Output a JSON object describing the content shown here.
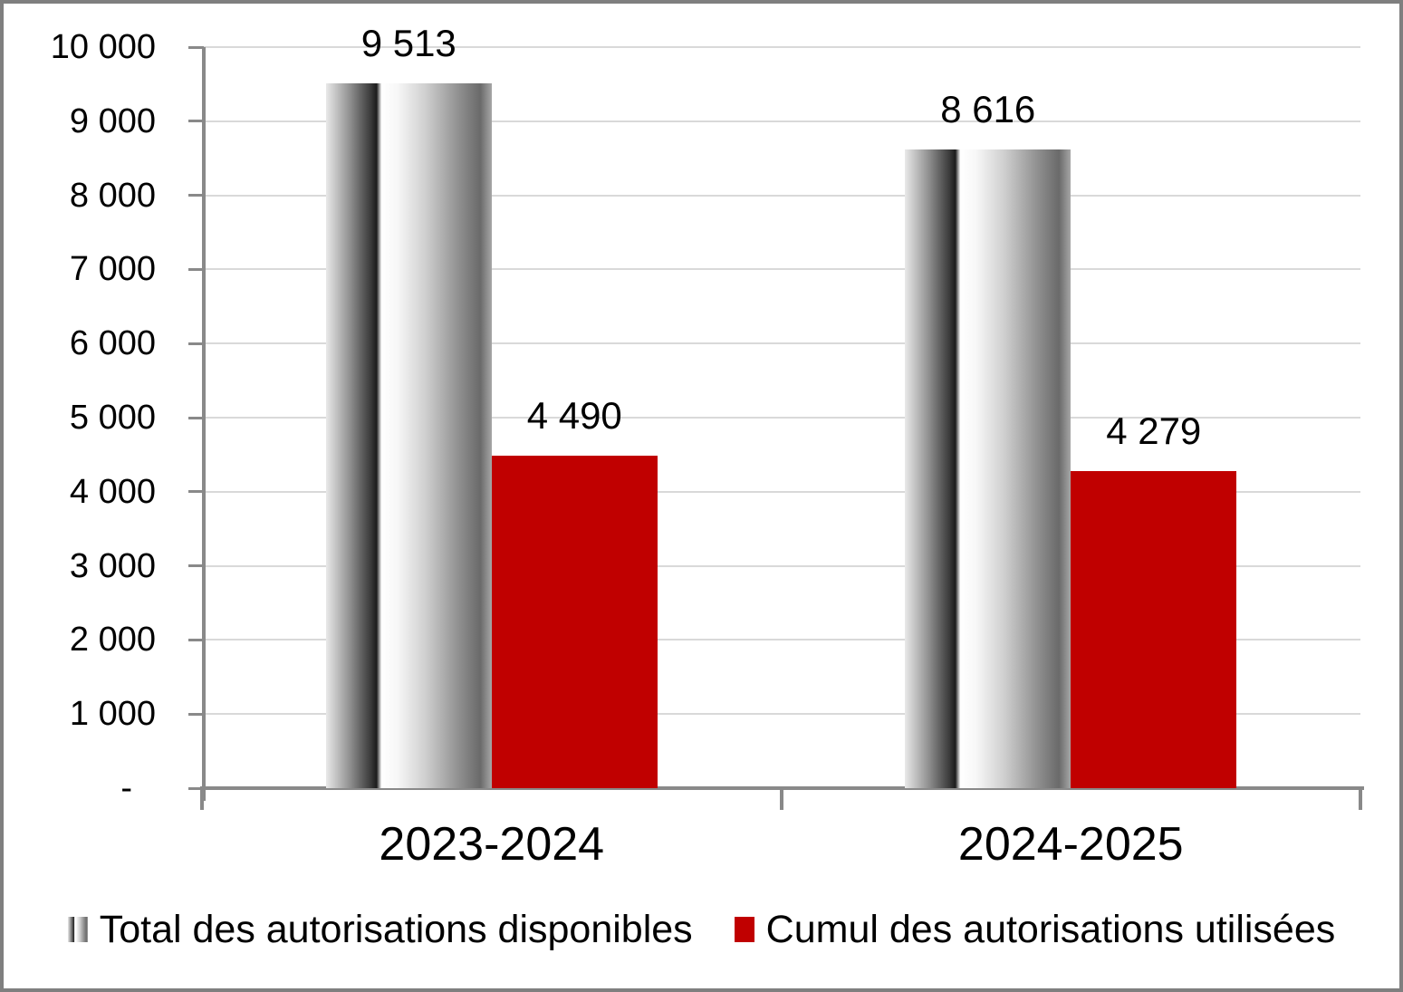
{
  "chart_data": {
    "type": "bar",
    "categories": [
      "2023-2024",
      "2024-2025"
    ],
    "series": [
      {
        "name": "Total des autorisations disponibles",
        "key": "total-disponibles",
        "values": [
          9513,
          8616
        ],
        "data_labels": [
          "9 513",
          "8 616"
        ],
        "fill": "gray-gradient"
      },
      {
        "name": "Cumul des autorisations utilisées",
        "key": "cumul-utilisees",
        "values": [
          4490,
          4279
        ],
        "data_labels": [
          "4 490",
          "4 279"
        ],
        "fill": "#c00000"
      }
    ],
    "ylim": [
      0,
      10000
    ],
    "ytick_interval": 1000,
    "ytick_labels": [
      "-",
      "1 000",
      "2 000",
      "3 000",
      "4 000",
      "5 000",
      "6 000",
      "7 000",
      "8 000",
      "9 000",
      "10 000"
    ],
    "grid": true,
    "legend_position": "bottom",
    "colors": {
      "series_red": "#c00000",
      "axis": "#898989",
      "gridline": "#d9d9d9",
      "text": "#000000",
      "frame_border": "#7f7f7f"
    }
  }
}
